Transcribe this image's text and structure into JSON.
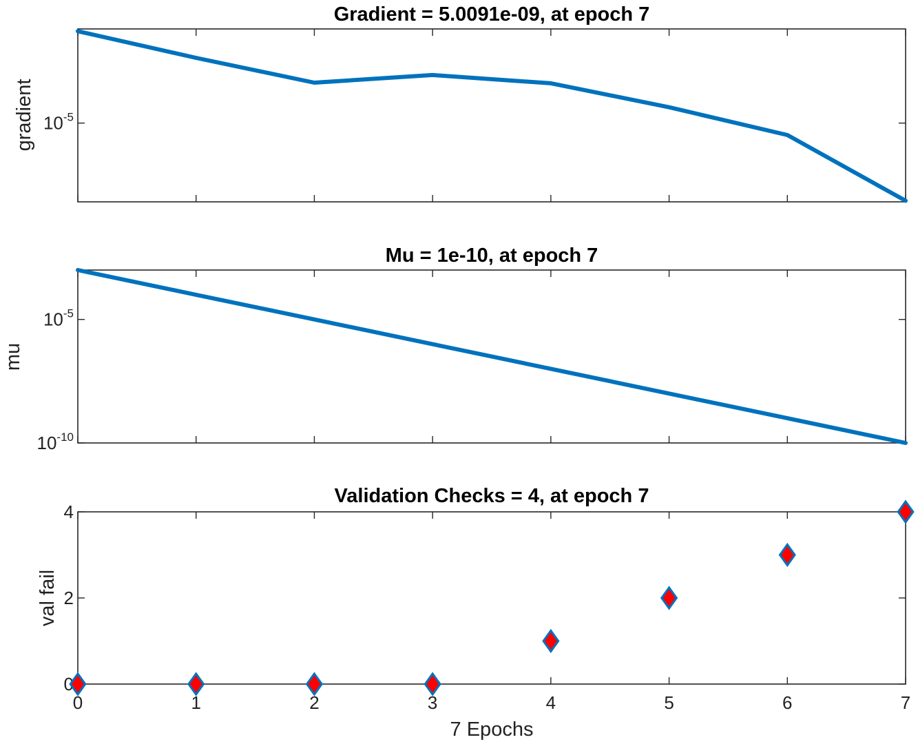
{
  "chart_data": [
    {
      "type": "line",
      "title": "Gradient = 5.0091e-09, at epoch 7",
      "xlabel": "",
      "ylabel": "gradient",
      "yscale": "log",
      "x": [
        0,
        1,
        2,
        3,
        4,
        5,
        6,
        7
      ],
      "series": [
        {
          "name": "gradient",
          "values": [
            0.08,
            0.0059,
            0.00052,
            0.0011,
            0.00049,
            4.7e-05,
            3.1e-06,
            5.0091e-09
          ]
        }
      ],
      "xlim": [
        0,
        7
      ],
      "ylim": [
        4.5e-09,
        0.1
      ],
      "yticks": [
        {
          "value": 1e-05,
          "base": "10",
          "exp": "-5"
        }
      ],
      "xtick_values": [
        0,
        1,
        2,
        3,
        4,
        5,
        6,
        7
      ],
      "show_xtick_labels": false
    },
    {
      "type": "line",
      "title": "Mu = 1e-10, at epoch 7",
      "xlabel": "",
      "ylabel": "mu",
      "yscale": "log",
      "x": [
        0,
        1,
        2,
        3,
        4,
        5,
        6,
        7
      ],
      "series": [
        {
          "name": "mu",
          "values": [
            0.001,
            0.0001,
            1e-05,
            1e-06,
            1e-07,
            1e-08,
            1e-09,
            1e-10
          ]
        }
      ],
      "xlim": [
        0,
        7
      ],
      "ylim": [
        1e-10,
        0.001
      ],
      "yticks": [
        {
          "value": 1e-05,
          "base": "10",
          "exp": "-5"
        },
        {
          "value": 1e-10,
          "base": "10",
          "exp": "-10"
        }
      ],
      "xtick_values": [
        0,
        1,
        2,
        3,
        4,
        5,
        6,
        7
      ],
      "show_xtick_labels": false
    },
    {
      "type": "scatter",
      "title": "Validation Checks = 4, at epoch 7",
      "xlabel": "7 Epochs",
      "ylabel": "val fail",
      "yscale": "linear",
      "x": [
        0,
        1,
        2,
        3,
        4,
        5,
        6,
        7
      ],
      "series": [
        {
          "name": "val fail",
          "values": [
            0,
            0,
            0,
            0,
            1,
            2,
            3,
            4
          ]
        }
      ],
      "xlim": [
        0,
        7
      ],
      "ylim": [
        0,
        4
      ],
      "yticks": [
        {
          "value": 0,
          "label": "0"
        },
        {
          "value": 2,
          "label": "2"
        },
        {
          "value": 4,
          "label": "4"
        }
      ],
      "xtick_values": [
        0,
        1,
        2,
        3,
        4,
        5,
        6,
        7
      ],
      "xtick_labels": [
        "0",
        "1",
        "2",
        "3",
        "4",
        "5",
        "6",
        "7"
      ],
      "show_xtick_labels": true
    }
  ],
  "colors": {
    "line": "#0072BD",
    "marker_fill": "#ff0000",
    "marker_edge": "#0072BD"
  }
}
